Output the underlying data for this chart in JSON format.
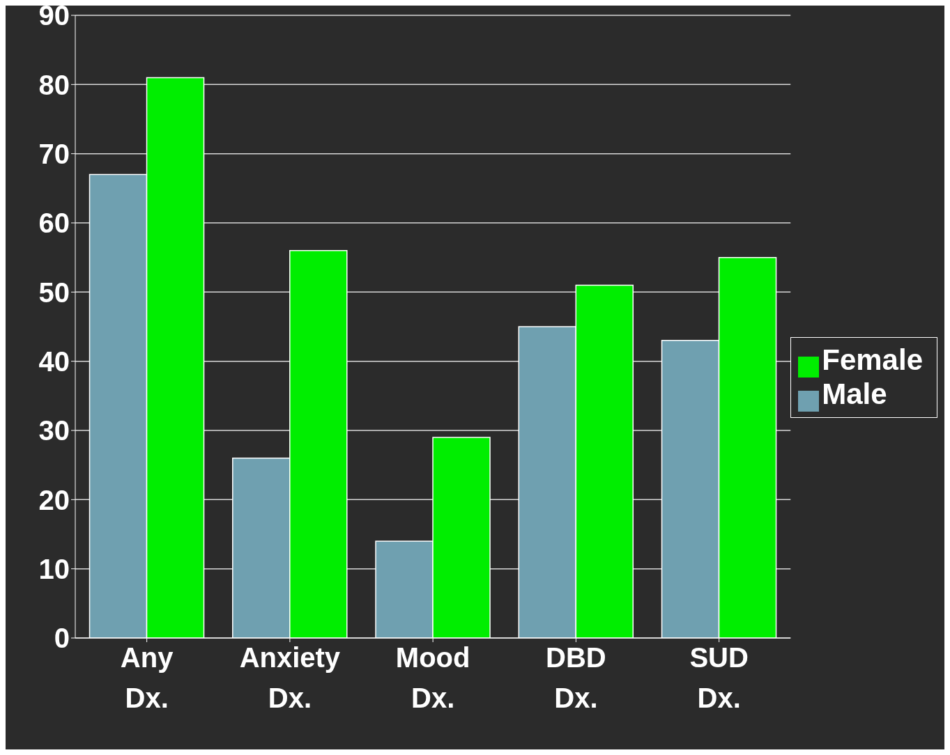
{
  "chart_data": {
    "type": "bar",
    "categories": [
      "Any\nDx.",
      "Anxiety\nDx.",
      "Mood\nDx.",
      "DBD\nDx.",
      "SUD\nDx."
    ],
    "series": [
      {
        "name": "Male",
        "color": "#6fa0b0",
        "values": [
          67,
          26,
          14,
          45,
          43
        ]
      },
      {
        "name": "Female",
        "color": "#00ee00",
        "values": [
          81,
          56,
          29,
          51,
          55
        ]
      }
    ],
    "ylim": [
      0,
      90
    ],
    "yticks": [
      0,
      10,
      20,
      30,
      40,
      50,
      60,
      70,
      80,
      90
    ],
    "grid": "y",
    "legend": "right"
  }
}
